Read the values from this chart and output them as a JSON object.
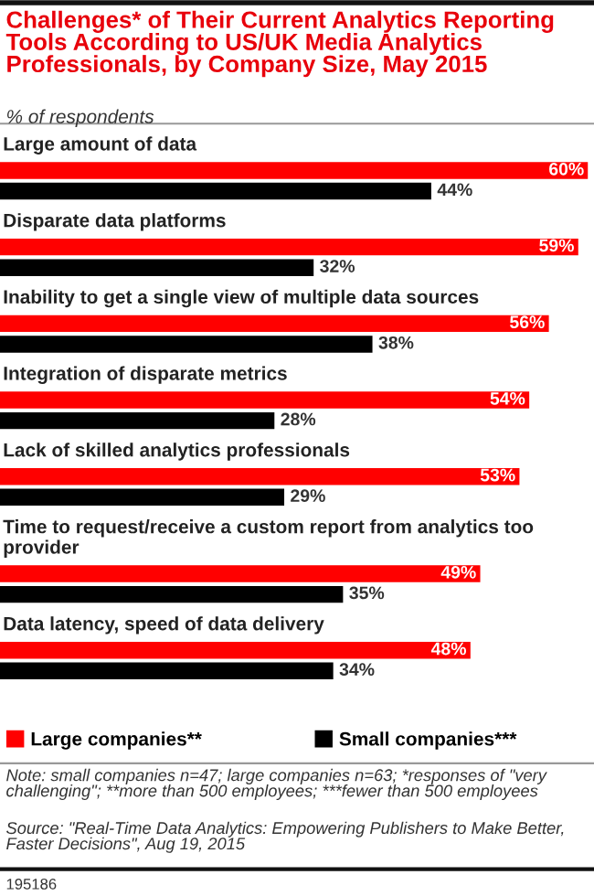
{
  "chart_data": {
    "type": "bar",
    "orientation": "horizontal",
    "title": "Challenges* of Their Current Analytics Reporting Tools According to US/UK Media Analytics Professionals, by Company Size, May 2015",
    "subtitle": "% of respondents",
    "categories": [
      "Large amount of data",
      "Disparate data platforms",
      "Inability to get a single view of multiple data sources",
      "Integration of disparate metrics",
      "Lack of skilled analytics professionals",
      "Time to request/receive a custom report from analytics too provider",
      "Data latency, speed of data delivery"
    ],
    "series": [
      {
        "name": "Large companies**",
        "color": "#ff0000",
        "values": [
          60,
          59,
          56,
          54,
          53,
          49,
          48
        ],
        "value_labels": [
          "60%",
          "59%",
          "56%",
          "54%",
          "53%",
          "49%",
          "48%"
        ]
      },
      {
        "name": "Small companies***",
        "color": "#000000",
        "values": [
          44,
          32,
          38,
          28,
          29,
          35,
          34
        ],
        "value_labels": [
          "44%",
          "32%",
          "38%",
          "28%",
          "29%",
          "35%",
          "34%"
        ]
      }
    ],
    "xlim": [
      0,
      60
    ],
    "legend": "bottom",
    "annotations": [
      "Note: small companies n=47; large companies n=63; *responses of \"very challenging\"; **more than 500 employees; ***fewer than 500 employees",
      "Source: \"Real-Time Data Analytics: Empowering Publishers to Make Better, Faster Decisions\", Aug 19, 2015",
      "195186"
    ]
  }
}
